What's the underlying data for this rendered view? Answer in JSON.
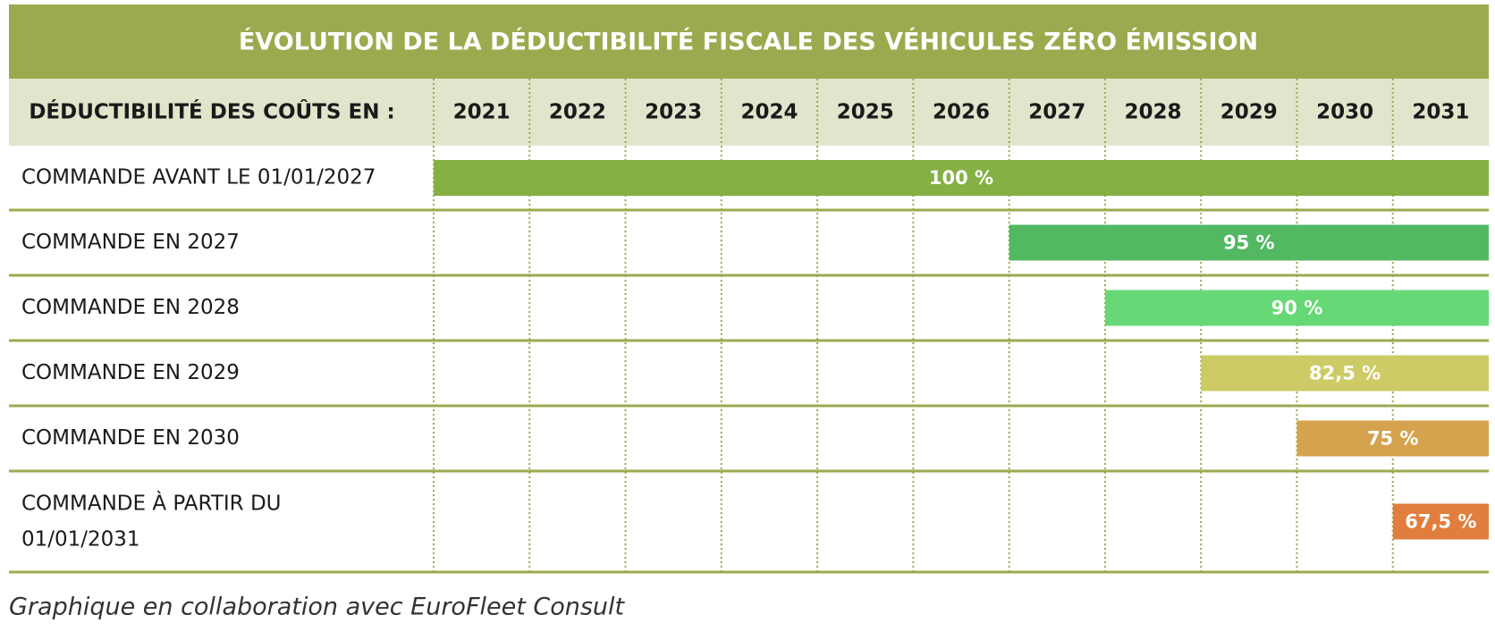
{
  "header": {
    "title": "ÉVOLUTION DE LA DÉDUCTIBILITÉ FISCALE DES VÉHICULES ZÉRO ÉMISSION"
  },
  "table": {
    "row_header": "DÉDUCTIBILITÉ DES COÛTS EN :",
    "years": [
      "2021",
      "2022",
      "2023",
      "2024",
      "2025",
      "2026",
      "2027",
      "2028",
      "2029",
      "2030",
      "2031"
    ],
    "rows": [
      {
        "label": "COMMANDE AVANT LE 01/01/2027",
        "from": "2021",
        "text": "100 %",
        "color": "#84b044"
      },
      {
        "label": "COMMANDE EN 2027",
        "from": "2027",
        "text": "95 %",
        "color": "#52b862"
      },
      {
        "label": "COMMANDE EN 2028",
        "from": "2028",
        "text": "90 %",
        "color": "#66d875"
      },
      {
        "label": "COMMANDE EN 2029",
        "from": "2029",
        "text": "82,5 %",
        "color": "#cccb66"
      },
      {
        "label": "COMMANDE EN 2030",
        "from": "2030",
        "text": "75 %",
        "color": "#d5a24e"
      },
      {
        "label": "COMMANDE À PARTIR DU 01/01/2031",
        "from": "2031",
        "text": "67,5 %",
        "color": "#e17e3e"
      }
    ]
  },
  "footer": {
    "note": "Graphique en collaboration avec EuroFleet Consult"
  }
}
